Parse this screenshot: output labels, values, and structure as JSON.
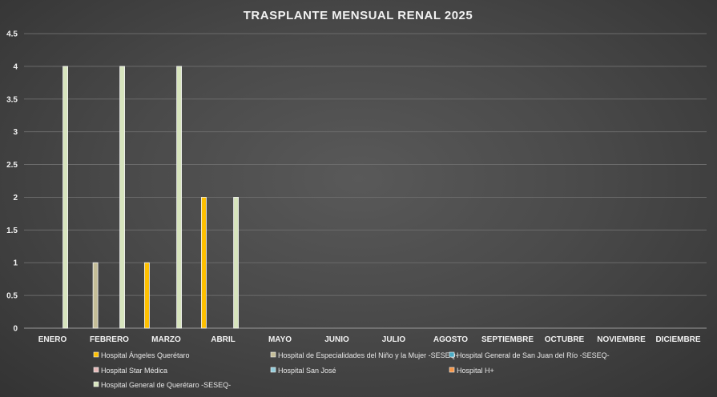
{
  "chart_data": {
    "type": "bar",
    "title": "TRASPLANTE MENSUAL RENAL 2025",
    "xlabel": "",
    "ylabel": "",
    "ylim": [
      0,
      4.5
    ],
    "y_ticks": [
      "0",
      "0.5",
      "1",
      "1.5",
      "2",
      "2.5",
      "3",
      "3.5",
      "4",
      "4.5"
    ],
    "grid": true,
    "legend_position": "bottom",
    "categories": [
      "ENERO",
      "FEBRERO",
      "MARZO",
      "ABRIL",
      "MAYO",
      "JUNIO",
      "JULIO",
      "AGOSTO",
      "SEPTIEMBRE",
      "OCTUBRE",
      "NOVIEMBRE",
      "DICIEMBRE"
    ],
    "series": [
      {
        "name": "Hospital Ángeles Querétaro",
        "color": "#ffc000",
        "values": [
          0,
          0,
          1,
          2,
          0,
          0,
          0,
          0,
          0,
          0,
          0,
          0
        ]
      },
      {
        "name": "Hospital de Especialidades del Niño y la Mujer -SESEQ-",
        "color": "#c4bd97",
        "values": [
          0,
          1,
          0,
          0,
          0,
          0,
          0,
          0,
          0,
          0,
          0,
          0
        ]
      },
      {
        "name": "Hospital General de San Juan del Río -SESEQ-",
        "color": "#4bacc6",
        "values": [
          0,
          0,
          0,
          0,
          0,
          0,
          0,
          0,
          0,
          0,
          0,
          0
        ]
      },
      {
        "name": "Hospital Star Médica",
        "color": "#e6b9b8",
        "values": [
          0,
          0,
          0,
          0,
          0,
          0,
          0,
          0,
          0,
          0,
          0,
          0
        ]
      },
      {
        "name": "Hospital San José",
        "color": "#92cddc",
        "values": [
          0,
          0,
          0,
          0,
          0,
          0,
          0,
          0,
          0,
          0,
          0,
          0
        ]
      },
      {
        "name": "Hospital H+",
        "color": "#f79646",
        "values": [
          0,
          0,
          0,
          0,
          0,
          0,
          0,
          0,
          0,
          0,
          0,
          0
        ]
      },
      {
        "name": "Hospital General de Querétaro -SESEQ-",
        "color": "#d7e4bd",
        "values": [
          4,
          4,
          4,
          2,
          0,
          0,
          0,
          0,
          0,
          0,
          0,
          0
        ]
      }
    ]
  }
}
